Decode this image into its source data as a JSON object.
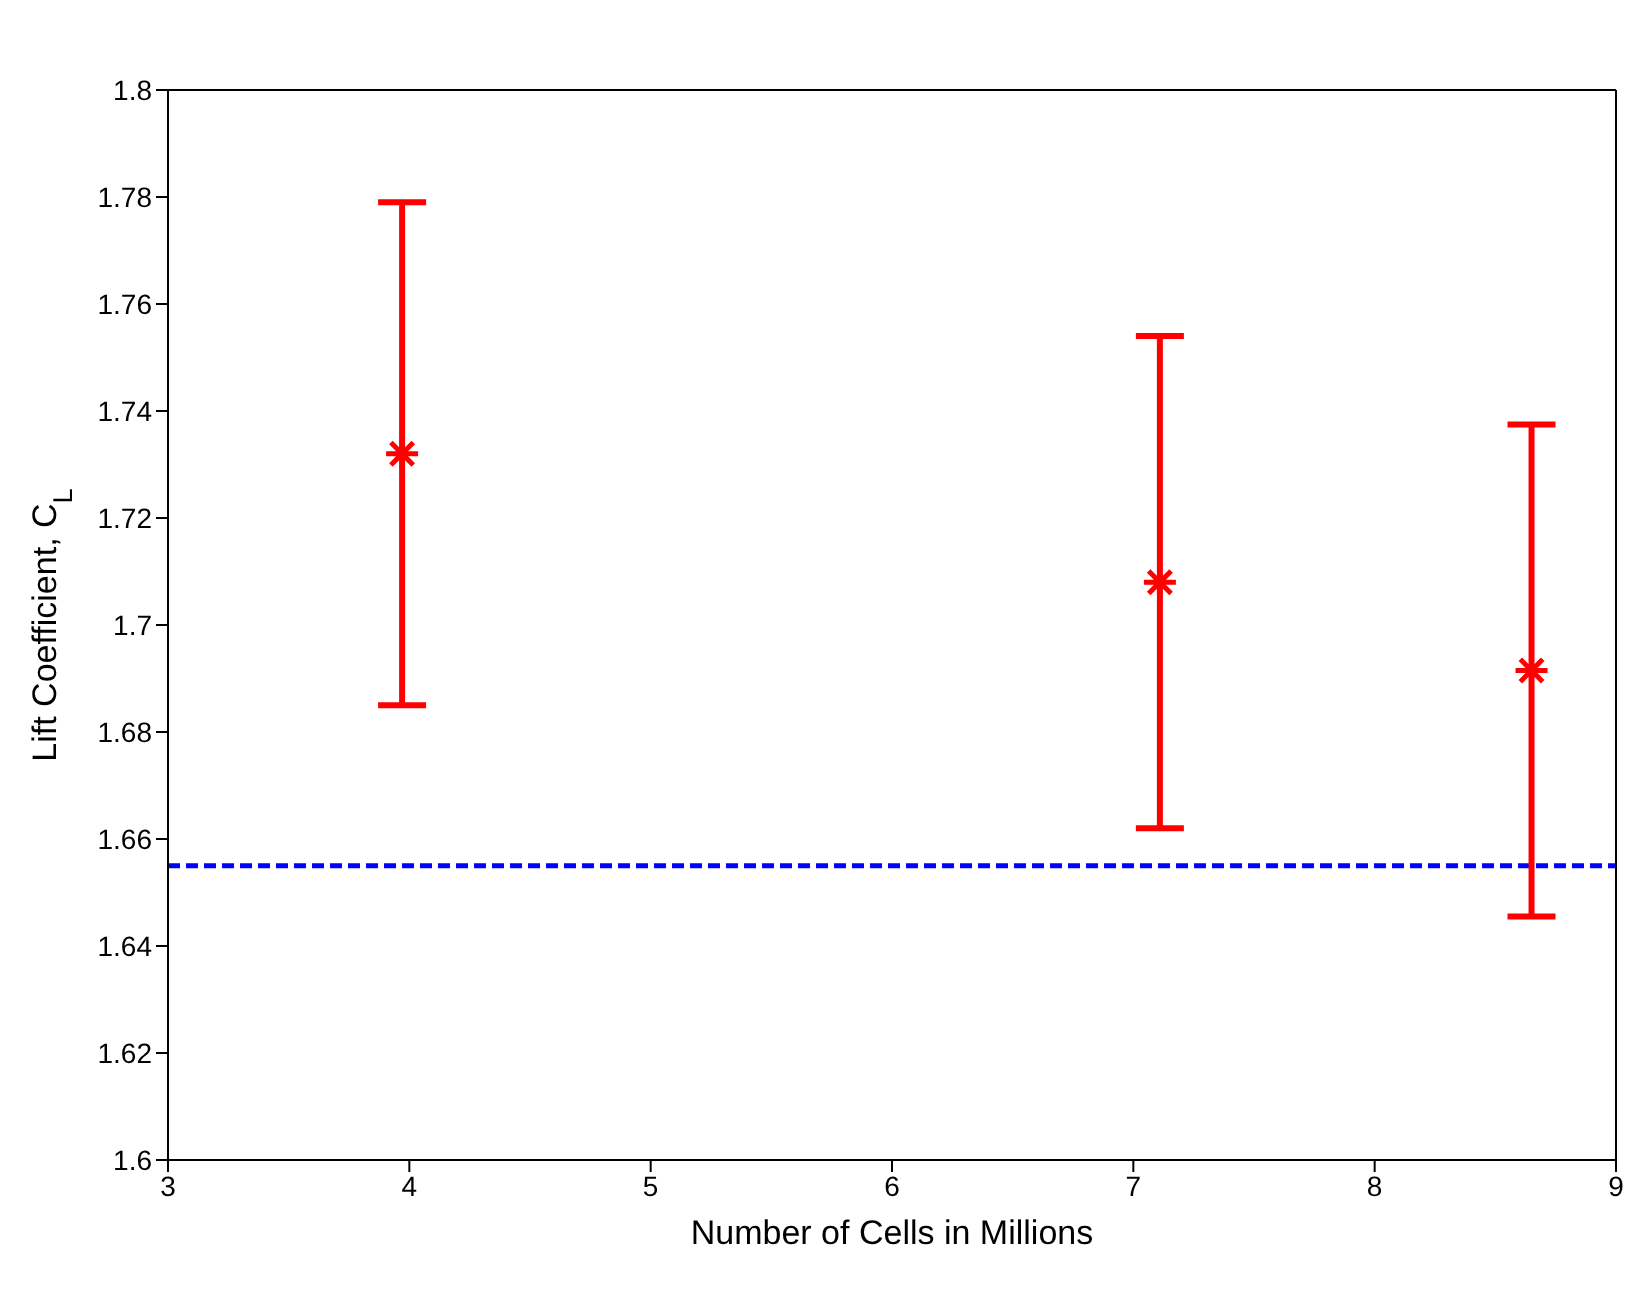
{
  "chart_data": {
    "type": "scatter",
    "xlabel": "Number of Cells in Millions",
    "ylabel": "Lift Coefficient, C$_{L}$",
    "x": [
      3.97,
      7.11,
      8.65
    ],
    "series": [
      {
        "color": "#ff0000",
        "values": [
          1.732,
          1.708,
          1.6915
        ],
        "errors": [
          0.047,
          0.046,
          0.046
        ]
      }
    ],
    "marker": "cross",
    "xlim": [
      3,
      9
    ],
    "xticks": [
      3,
      4,
      5,
      6,
      7,
      8,
      9
    ],
    "ylim": [
      1.6,
      1.8
    ],
    "yticks": [
      1.6,
      1.62,
      1.64,
      1.66,
      1.68,
      1.7,
      1.72,
      1.74,
      1.76,
      1.78,
      1.8
    ],
    "ref_lines": [
      {
        "axis": "y",
        "value": 1.655,
        "color": "#0000ff",
        "line_style": "dashed"
      }
    ],
    "grid": false
  }
}
